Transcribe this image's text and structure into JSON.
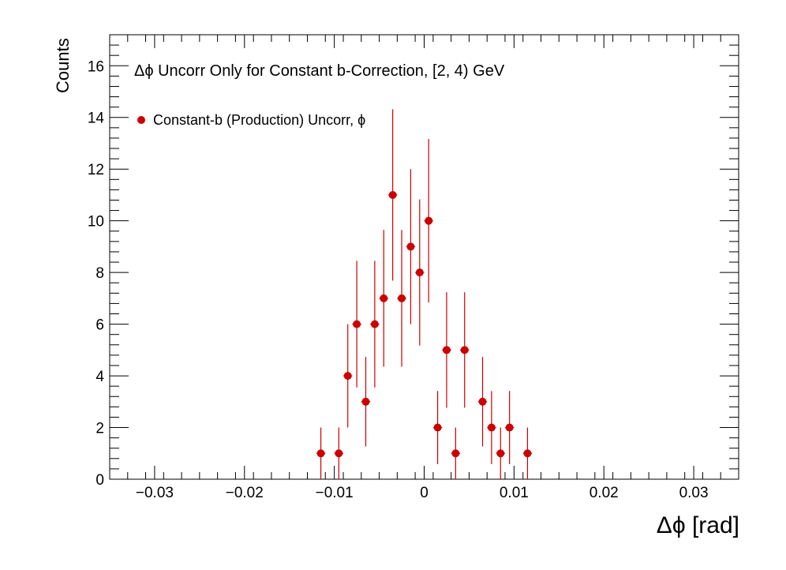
{
  "chart_data": {
    "type": "scatter",
    "title": "Δϕ Uncorr Only for Constant b-Correction, [2, 4) GeV",
    "xlabel": "Δϕ  [rad]",
    "ylabel": "Counts",
    "xlim": [
      -0.035,
      0.035
    ],
    "ylim": [
      0,
      17.2
    ],
    "x_ticks": [
      -0.03,
      -0.02,
      -0.01,
      0,
      0.01,
      0.02,
      0.03
    ],
    "x_tick_labels": [
      "−0.03",
      "−0.02",
      "−0.01",
      "0",
      "0.01",
      "0.02",
      "0.03"
    ],
    "y_ticks": [
      0,
      2,
      4,
      6,
      8,
      10,
      12,
      14,
      16
    ],
    "y_tick_labels": [
      "0",
      "2",
      "4",
      "6",
      "8",
      "10",
      "12",
      "14",
      "16"
    ],
    "grid": false,
    "legend_position": "top-left",
    "series": [
      {
        "name": "Constant-b (Production) Uncorr, ϕ",
        "color": "#cc0000",
        "marker": "circle",
        "points": [
          {
            "x": -0.0115,
            "y": 1
          },
          {
            "x": -0.0095,
            "y": 1
          },
          {
            "x": -0.0085,
            "y": 4
          },
          {
            "x": -0.0075,
            "y": 6
          },
          {
            "x": -0.0065,
            "y": 3
          },
          {
            "x": -0.0055,
            "y": 6
          },
          {
            "x": -0.0045,
            "y": 7
          },
          {
            "x": -0.0035,
            "y": 11
          },
          {
            "x": -0.0025,
            "y": 7
          },
          {
            "x": -0.0015,
            "y": 9
          },
          {
            "x": -0.0005,
            "y": 8
          },
          {
            "x": 0.0005,
            "y": 10
          },
          {
            "x": 0.0015,
            "y": 2
          },
          {
            "x": 0.0025,
            "y": 5
          },
          {
            "x": 0.0035,
            "y": 1
          },
          {
            "x": 0.0045,
            "y": 5
          },
          {
            "x": 0.0065,
            "y": 3
          },
          {
            "x": 0.0075,
            "y": 2
          },
          {
            "x": 0.0085,
            "y": 1
          },
          {
            "x": 0.0095,
            "y": 2
          },
          {
            "x": 0.0115,
            "y": 1
          }
        ]
      }
    ]
  }
}
